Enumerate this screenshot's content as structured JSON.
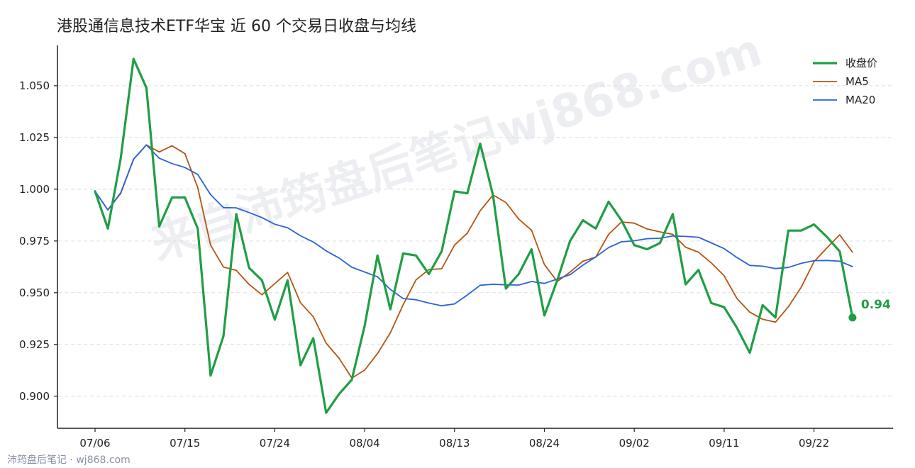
{
  "footer": "沛筠盘后笔记 · wj868.com",
  "watermark": "来自沛筠盘后笔记wj868.com",
  "colors": {
    "close": "#1f9e45",
    "ma5": "#b5540f",
    "ma20": "#2a63d6"
  },
  "chart_data": {
    "type": "line",
    "title": "港股通信息技术ETF华宝 近 60 个交易日收盘与均线",
    "xlabel": "",
    "ylabel": "",
    "x_tick_labels": [
      "07/06",
      "07/15",
      "07/24",
      "08/04",
      "08/13",
      "08/24",
      "09/02",
      "09/11",
      "09/22"
    ],
    "x_tick_index": [
      0,
      7,
      14,
      21,
      28,
      35,
      42,
      49,
      56
    ],
    "n_points": 60,
    "y_ticks": [
      "0.900",
      "0.925",
      "0.950",
      "0.975",
      "1.000",
      "1.025",
      "1.050"
    ],
    "ylim": [
      0.8845,
      1.0695
    ],
    "grid": true,
    "legend_position": "top-right",
    "last_value_label": "0.94",
    "series": [
      {
        "name": "收盘价",
        "values": [
          0.999,
          0.981,
          1.015,
          1.063,
          1.049,
          0.982,
          0.996,
          0.996,
          0.981,
          0.91,
          0.929,
          0.988,
          0.962,
          0.956,
          0.937,
          0.956,
          0.915,
          0.928,
          0.892,
          0.901,
          0.908,
          0.934,
          0.968,
          0.942,
          0.969,
          0.968,
          0.959,
          0.97,
          0.999,
          0.998,
          1.022,
          0.997,
          0.952,
          0.959,
          0.971,
          0.939,
          0.956,
          0.975,
          0.985,
          0.981,
          0.994,
          0.985,
          0.973,
          0.971,
          0.974,
          0.988,
          0.954,
          0.961,
          0.945,
          0.943,
          0.933,
          0.921,
          0.944,
          0.938,
          0.98,
          0.98,
          0.983,
          0.977,
          0.97,
          0.938
        ]
      },
      {
        "name": "MA5",
        "values": [
          0.999,
          0.99,
          0.998,
          1.0145,
          1.0214,
          1.018,
          1.021,
          1.0172,
          1.0008,
          0.973,
          0.9624,
          0.9608,
          0.954,
          0.949,
          0.9544,
          0.9598,
          0.9452,
          0.9384,
          0.9256,
          0.9184,
          0.9088,
          0.9126,
          0.9206,
          0.9306,
          0.9442,
          0.9562,
          0.9612,
          0.9616,
          0.973,
          0.9788,
          0.9896,
          0.9972,
          0.9936,
          0.9856,
          0.9802,
          0.9636,
          0.9554,
          0.96,
          0.9652,
          0.9672,
          0.9782,
          0.9842,
          0.9836,
          0.9808,
          0.9794,
          0.9782,
          0.972,
          0.9696,
          0.9644,
          0.9582,
          0.9472,
          0.9406,
          0.9372,
          0.9358,
          0.9432,
          0.9526,
          0.965,
          0.9716,
          0.978,
          0.9696
        ]
      },
      {
        "name": "MA20",
        "values": [
          0.999,
          0.99,
          0.9983,
          1.0145,
          1.0214,
          1.015,
          1.0124,
          1.0105,
          1.0071,
          0.9974,
          0.9911,
          0.991,
          0.9887,
          0.9863,
          0.9831,
          0.9814,
          0.9775,
          0.9745,
          0.9702,
          0.9668,
          0.9623,
          0.96,
          0.9577,
          0.9516,
          0.9472,
          0.9466,
          0.945,
          0.9437,
          0.9446,
          0.9489,
          0.9536,
          0.9541,
          0.9538,
          0.9537,
          0.9554,
          0.9545,
          0.9566,
          0.9587,
          0.9633,
          0.9673,
          0.9718,
          0.9746,
          0.9751,
          0.9761,
          0.9763,
          0.9774,
          0.9772,
          0.9768,
          0.9741,
          0.9713,
          0.967,
          0.9632,
          0.9628,
          0.9617,
          0.9622,
          0.9642,
          0.9655,
          0.9656,
          0.9652,
          0.9626
        ]
      }
    ]
  }
}
